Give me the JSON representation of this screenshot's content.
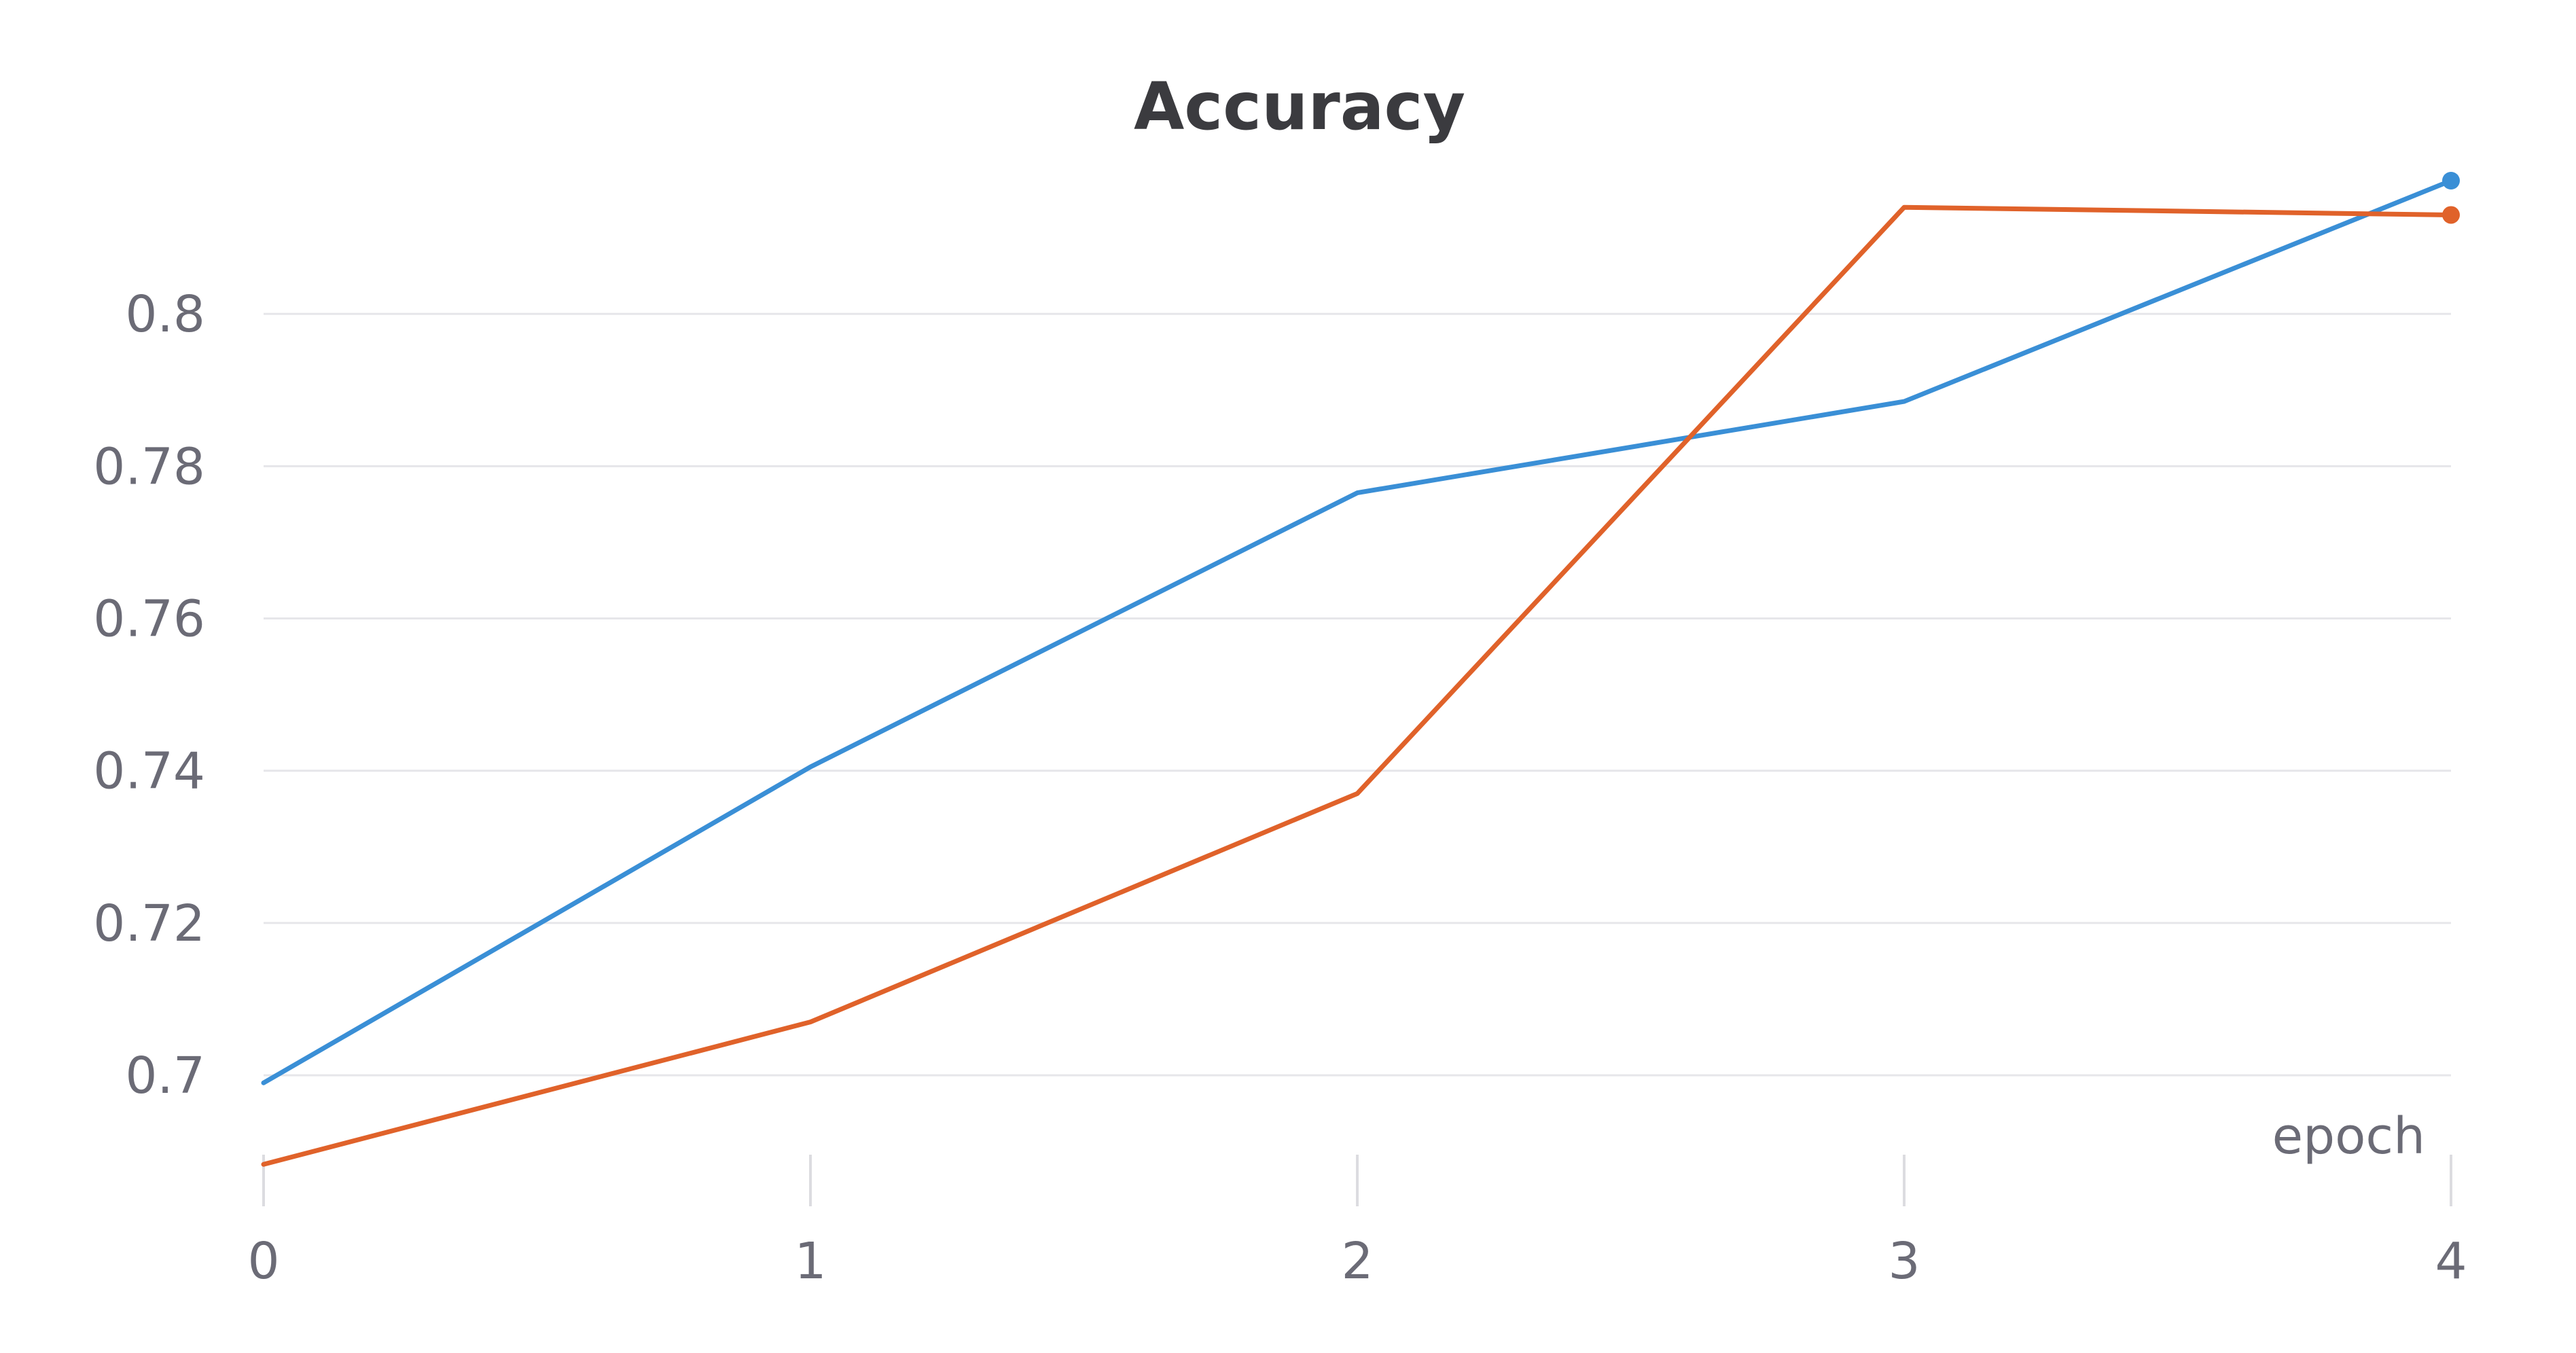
{
  "chart_data": {
    "type": "line",
    "title": "Accuracy",
    "xlabel": "epoch",
    "ylabel": "",
    "x": [
      0,
      1,
      2,
      3,
      4
    ],
    "xlim": [
      0,
      4
    ],
    "ylim": [
      0.686,
      0.8175
    ],
    "x_ticks": [
      "0",
      "1",
      "2",
      "3",
      "4"
    ],
    "y_ticks": [
      "0.7",
      "0.72",
      "0.74",
      "0.76",
      "0.78",
      "0.8"
    ],
    "y_tick_values": [
      0.7,
      0.72,
      0.74,
      0.76,
      0.78,
      0.8
    ],
    "grid": "horizontal",
    "series": [
      {
        "color": "#3a8fd6",
        "values": [
          0.699,
          0.7405,
          0.7765,
          0.7885,
          0.8175
        ]
      },
      {
        "color": "#e0622a",
        "values": [
          0.6883,
          0.707,
          0.737,
          0.814,
          0.813
        ]
      }
    ]
  }
}
